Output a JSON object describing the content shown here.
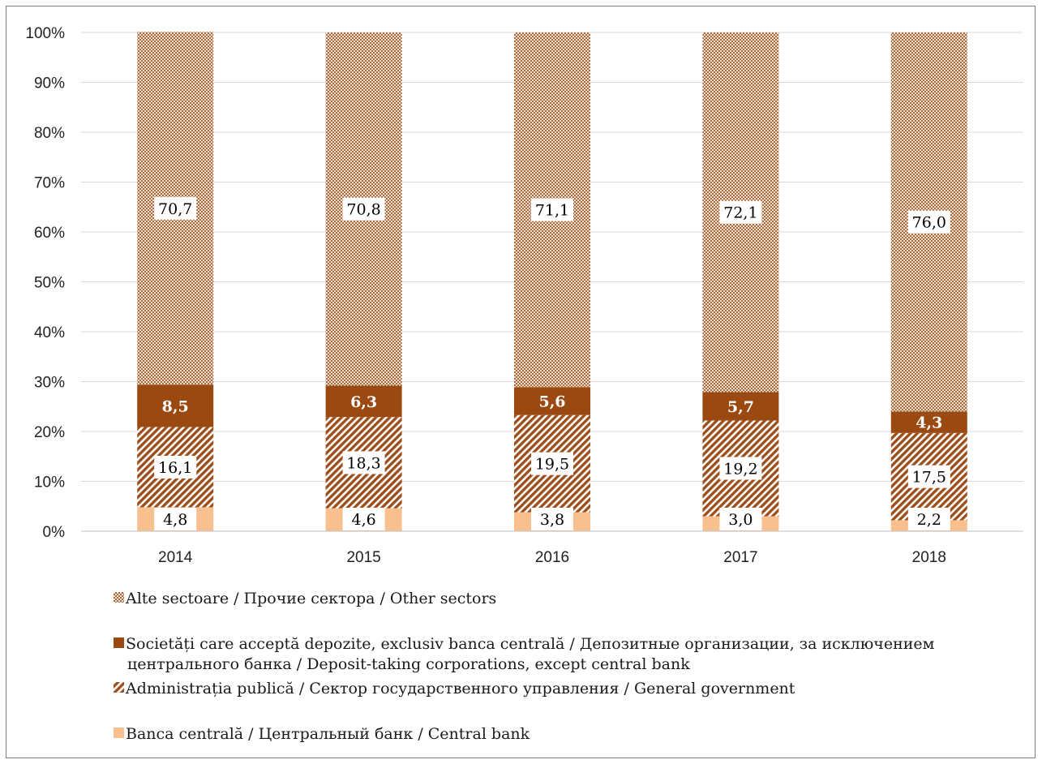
{
  "chart_data": {
    "type": "bar",
    "stacked": true,
    "categories": [
      "2014",
      "2015",
      "2016",
      "2017",
      "2018"
    ],
    "y_ticks": [
      "0%",
      "10%",
      "20%",
      "30%",
      "40%",
      "50%",
      "60%",
      "70%",
      "80%",
      "90%",
      "100%"
    ],
    "ylim": [
      0,
      100
    ],
    "grid": true,
    "legend_placement": "bottom",
    "series": [
      {
        "name": "Banca centrală / Центральный банк / Central bank",
        "values": [
          4.8,
          4.6,
          3.8,
          3.0,
          2.2
        ],
        "labels": [
          "4,8",
          "4,6",
          "3,8",
          "3,0",
          "2,2"
        ],
        "color": "#f8c08f",
        "pattern": "solid"
      },
      {
        "name": "Administrația publică / Сектор государственного управления / General government",
        "values": [
          16.1,
          18.3,
          19.5,
          19.2,
          17.5
        ],
        "labels": [
          "16,1",
          "18,3",
          "19,5",
          "19,2",
          "17,5"
        ],
        "color": "#9c4f1c",
        "pattern": "diagonal"
      },
      {
        "name": "Societăți care acceptă depozite, exclusiv banca centrală / Депозитные организации, за исключением центрального банка / Deposit-taking corporations, except central bank",
        "values": [
          8.5,
          6.3,
          5.6,
          5.7,
          4.3
        ],
        "labels": [
          "8,5",
          "6,3",
          "5,6",
          "5,7",
          "4,3"
        ],
        "color": "#9a4910",
        "pattern": "solid"
      },
      {
        "name": "Alte sectoare / Прочие сектора / Other sectors",
        "values": [
          70.7,
          70.8,
          71.1,
          72.1,
          76.0
        ],
        "labels": [
          "70,7",
          "70,8",
          "71,1",
          "72,1",
          "76,0"
        ],
        "color": "#a6693d",
        "pattern": "checker"
      }
    ],
    "legend": [
      {
        "lines": [
          "Alte sectoare / Прочие сектора / Other sectors"
        ],
        "series_index": 3
      },
      {
        "lines": [
          "Societăți care acceptă depozite, exclusiv banca centrală / Депозитные организации, за исключением",
          "центрального банка / Deposit-taking corporations, except central bank"
        ],
        "series_index": 2
      },
      {
        "lines": [
          "Administrația publică / Сектор государственного управления / General government"
        ],
        "series_index": 1
      },
      {
        "lines": [
          "Banca centrală / Центральный банк / Central bank"
        ],
        "series_index": 0
      }
    ]
  }
}
